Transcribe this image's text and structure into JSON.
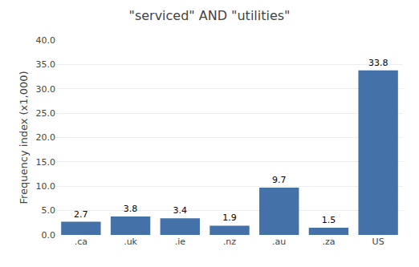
{
  "chart_data": {
    "type": "bar",
    "title": "\"serviced\" AND \"utilities\"",
    "categories": [
      ".ca",
      ".uk",
      ".ie",
      ".nz",
      ".au",
      ".za",
      "US"
    ],
    "values": [
      2.7,
      3.8,
      3.4,
      1.9,
      9.7,
      1.5,
      33.8
    ],
    "color": "#4472a8",
    "ylabel": "Frequency index (x1,000)",
    "ylim": [
      0,
      40
    ],
    "yticks": [
      {
        "value": 0,
        "label": "0.0"
      },
      {
        "value": 5,
        "label": "5.0"
      },
      {
        "value": 10,
        "label": "10.0"
      },
      {
        "value": 15,
        "label": "15.0"
      },
      {
        "value": 20,
        "label": "20.0"
      },
      {
        "value": 25,
        "label": "25.0"
      },
      {
        "value": 30,
        "label": "30.0"
      },
      {
        "value": 35,
        "label": "35.0"
      },
      {
        "value": 40,
        "label": "40.0"
      }
    ],
    "grid": true,
    "data_labels": true
  }
}
